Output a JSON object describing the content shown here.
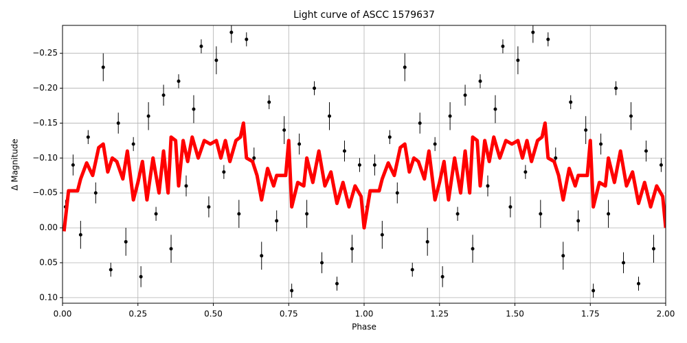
{
  "chart_data": {
    "type": "scatter",
    "title": "Light curve of ASCC 1579637",
    "xlabel": "Phase",
    "ylabel": "Δ Magnitude",
    "xlim": [
      0,
      2
    ],
    "ylim": [
      -0.29,
      0.108
    ],
    "y_inverted": true,
    "grid": true,
    "xticks": [
      {
        "value": 0,
        "label": "0.00"
      },
      {
        "value": 0.25,
        "label": "0.25"
      },
      {
        "value": 0.5,
        "label": "0.50"
      },
      {
        "value": 0.75,
        "label": "0.75"
      },
      {
        "value": 1,
        "label": "1.00"
      },
      {
        "value": 1.25,
        "label": "1.25"
      },
      {
        "value": 1.5,
        "label": "1.50"
      },
      {
        "value": 1.75,
        "label": "1.75"
      },
      {
        "value": 2,
        "label": "2.00"
      }
    ],
    "yticks": [
      {
        "value": -0.25,
        "label": "−0.25"
      },
      {
        "value": -0.2,
        "label": "−0.20"
      },
      {
        "value": -0.15,
        "label": "−0.15"
      },
      {
        "value": -0.1,
        "label": "−0.10"
      },
      {
        "value": -0.05,
        "label": "−0.05"
      },
      {
        "value": 0,
        "label": "0.00"
      },
      {
        "value": 0.05,
        "label": "0.05"
      },
      {
        "value": 0.1,
        "label": "0.10"
      }
    ],
    "series": [
      {
        "type": "errorbar",
        "color": "#000000",
        "x": [
          0.01,
          0.035,
          0.06,
          0.085,
          0.11,
          0.135,
          0.16,
          0.185,
          0.21,
          0.235,
          0.26,
          0.285,
          0.31,
          0.335,
          0.36,
          0.385,
          0.41,
          0.435,
          0.46,
          0.485,
          0.51,
          0.535,
          0.56,
          0.585,
          0.61,
          0.635,
          0.66,
          0.685,
          0.71,
          0.735,
          0.76,
          0.785,
          0.81,
          0.835,
          0.86,
          0.885,
          0.91,
          0.935,
          0.96,
          0.985,
          1.01,
          1.035,
          1.06,
          1.085,
          1.11,
          1.135,
          1.16,
          1.185,
          1.21,
          1.235,
          1.26,
          1.285,
          1.31,
          1.335,
          1.36,
          1.385,
          1.41,
          1.435,
          1.46,
          1.485,
          1.51,
          1.535,
          1.56,
          1.585,
          1.61,
          1.635,
          1.66,
          1.685,
          1.71,
          1.735,
          1.76,
          1.785,
          1.81,
          1.835,
          1.86,
          1.885,
          1.91,
          1.935,
          1.96,
          1.985
        ],
        "values": [
          -0.03,
          -0.09,
          0.01,
          -0.13,
          -0.05,
          -0.23,
          0.06,
          -0.15,
          0.02,
          -0.12,
          0.07,
          -0.16,
          -0.02,
          -0.19,
          0.03,
          -0.21,
          -0.06,
          -0.17,
          -0.26,
          -0.03,
          -0.24,
          -0.08,
          -0.28,
          -0.02,
          -0.27,
          -0.1,
          0.04,
          -0.18,
          -0.01,
          -0.14,
          0.09,
          -0.12,
          -0.02,
          -0.2,
          0.05,
          -0.16,
          0.08,
          -0.11,
          0.03,
          -0.09,
          -0.03,
          -0.09,
          0.01,
          -0.13,
          -0.05,
          -0.23,
          0.06,
          -0.15,
          0.02,
          -0.12,
          0.07,
          -0.16,
          -0.02,
          -0.19,
          0.03,
          -0.21,
          -0.06,
          -0.17,
          -0.26,
          -0.03,
          -0.24,
          -0.08,
          -0.28,
          -0.02,
          -0.27,
          -0.1,
          0.04,
          -0.18,
          -0.01,
          -0.14,
          0.09,
          -0.12,
          -0.02,
          -0.2,
          0.05,
          -0.16,
          0.08,
          -0.11,
          0.03,
          -0.09
        ],
        "errors": [
          0.01,
          0.015,
          0.02,
          0.01,
          0.015,
          0.02,
          0.01,
          0.015,
          0.02,
          0.01,
          0.015,
          0.02,
          0.01,
          0.015,
          0.02,
          0.01,
          0.015,
          0.02,
          0.01,
          0.015,
          0.02,
          0.01,
          0.015,
          0.02,
          0.01,
          0.015,
          0.02,
          0.01,
          0.015,
          0.02,
          0.01,
          0.015,
          0.02,
          0.01,
          0.015,
          0.02,
          0.01,
          0.015,
          0.02,
          0.01,
          0.01,
          0.015,
          0.02,
          0.01,
          0.015,
          0.02,
          0.01,
          0.015,
          0.02,
          0.01,
          0.015,
          0.02,
          0.01,
          0.015,
          0.02,
          0.01,
          0.015,
          0.02,
          0.01,
          0.015,
          0.02,
          0.01,
          0.015,
          0.02,
          0.01,
          0.015,
          0.02,
          0.01,
          0.015,
          0.02,
          0.01,
          0.015,
          0.02,
          0.01,
          0.015,
          0.02,
          0.01,
          0.015,
          0.02,
          0.01
        ]
      },
      {
        "type": "line",
        "color": "#ff0000",
        "x": [
          0.005,
          0.02,
          0.05,
          0.06,
          0.08,
          0.1,
          0.12,
          0.135,
          0.15,
          0.165,
          0.18,
          0.2,
          0.215,
          0.235,
          0.25,
          0.265,
          0.28,
          0.3,
          0.32,
          0.335,
          0.35,
          0.36,
          0.375,
          0.385,
          0.4,
          0.415,
          0.43,
          0.45,
          0.47,
          0.49,
          0.51,
          0.525,
          0.54,
          0.555,
          0.575,
          0.59,
          0.6,
          0.61,
          0.63,
          0.645,
          0.66,
          0.68,
          0.7,
          0.71,
          0.74,
          0.75,
          0.76,
          0.78,
          0.8,
          0.81,
          0.83,
          0.85,
          0.87,
          0.89,
          0.91,
          0.93,
          0.95,
          0.97,
          0.99,
          1.0,
          1.02,
          1.05,
          1.06,
          1.08,
          1.1,
          1.12,
          1.135,
          1.15,
          1.165,
          1.18,
          1.2,
          1.215,
          1.235,
          1.25,
          1.265,
          1.28,
          1.3,
          1.32,
          1.335,
          1.35,
          1.36,
          1.375,
          1.385,
          1.4,
          1.415,
          1.43,
          1.45,
          1.47,
          1.49,
          1.51,
          1.525,
          1.54,
          1.555,
          1.575,
          1.59,
          1.6,
          1.61,
          1.63,
          1.645,
          1.66,
          1.68,
          1.7,
          1.71,
          1.74,
          1.75,
          1.76,
          1.78,
          1.8,
          1.81,
          1.83,
          1.85,
          1.87,
          1.89,
          1.91,
          1.93,
          1.95,
          1.97,
          1.99,
          2.0
        ],
        "values": [
          0.005,
          -0.053,
          -0.053,
          -0.07,
          -0.093,
          -0.075,
          -0.115,
          -0.12,
          -0.08,
          -0.1,
          -0.095,
          -0.07,
          -0.11,
          -0.04,
          -0.065,
          -0.095,
          -0.04,
          -0.1,
          -0.05,
          -0.11,
          -0.05,
          -0.13,
          -0.125,
          -0.06,
          -0.125,
          -0.095,
          -0.13,
          -0.1,
          -0.125,
          -0.12,
          -0.125,
          -0.1,
          -0.125,
          -0.095,
          -0.125,
          -0.13,
          -0.15,
          -0.1,
          -0.095,
          -0.075,
          -0.04,
          -0.085,
          -0.06,
          -0.075,
          -0.075,
          -0.125,
          -0.03,
          -0.065,
          -0.06,
          -0.1,
          -0.065,
          -0.11,
          -0.06,
          -0.08,
          -0.035,
          -0.065,
          -0.03,
          -0.06,
          -0.045,
          0.0,
          -0.053,
          -0.053,
          -0.07,
          -0.093,
          -0.075,
          -0.115,
          -0.12,
          -0.08,
          -0.1,
          -0.095,
          -0.07,
          -0.11,
          -0.04,
          -0.065,
          -0.095,
          -0.04,
          -0.1,
          -0.05,
          -0.11,
          -0.05,
          -0.13,
          -0.125,
          -0.06,
          -0.125,
          -0.095,
          -0.13,
          -0.1,
          -0.125,
          -0.12,
          -0.125,
          -0.1,
          -0.125,
          -0.095,
          -0.125,
          -0.13,
          -0.15,
          -0.1,
          -0.095,
          -0.075,
          -0.04,
          -0.085,
          -0.06,
          -0.075,
          -0.075,
          -0.125,
          -0.03,
          -0.065,
          -0.06,
          -0.1,
          -0.065,
          -0.11,
          -0.06,
          -0.08,
          -0.035,
          -0.065,
          -0.03,
          -0.06,
          -0.045,
          0.0
        ]
      }
    ]
  }
}
